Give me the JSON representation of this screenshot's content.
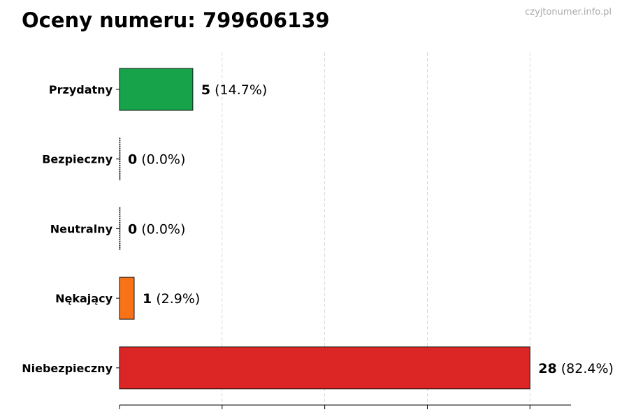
{
  "title": "Oceny numeru: 799606139",
  "watermark": "czyjtonumer.info.pl",
  "chart_data": {
    "type": "bar",
    "orientation": "horizontal",
    "title": "Oceny numeru: 799606139",
    "xlabel": "",
    "ylabel": "",
    "categories": [
      "Przydatny",
      "Bezpieczny",
      "Neutralny",
      "Nękający",
      "Niebezpieczny"
    ],
    "values": [
      5,
      0,
      0,
      1,
      28
    ],
    "percent_labels": [
      "(14.7%)",
      "(0.0%)",
      "(0.0%)",
      "(2.9%)",
      "(82.4%)"
    ],
    "colors": [
      "#16a34a",
      "#9ca3af",
      "#9ca3af",
      "#f97316",
      "#dc2626"
    ],
    "xlim": [
      0,
      30.8
    ],
    "xticks": [
      0,
      7,
      14,
      21,
      28
    ],
    "xtick_labels_shown": false,
    "grid": "vertical dashed"
  }
}
